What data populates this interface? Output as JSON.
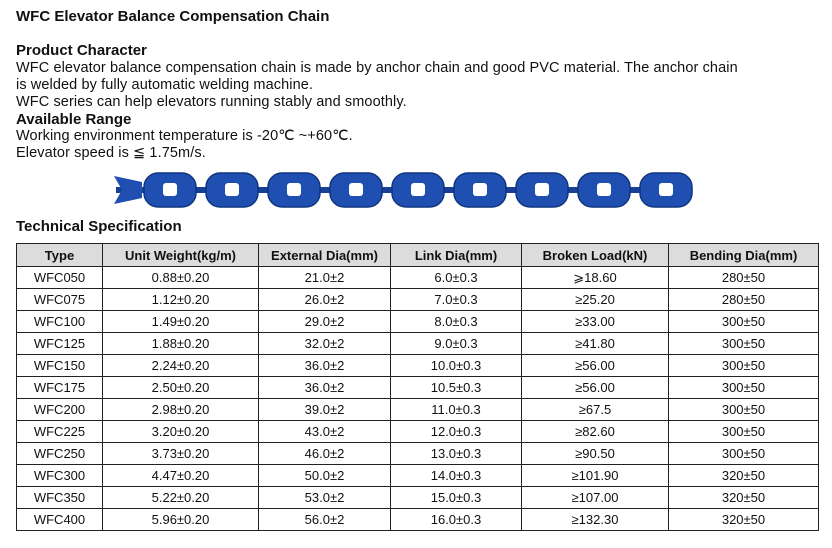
{
  "title": "WFC Elevator Balance Compensation Chain",
  "product_character": {
    "heading": "Product Character",
    "lines": [
      "WFC elevator balance compensation chain is made by anchor chain and good PVC material. The anchor chain",
      "is welded by fully automatic welding machine.",
      "WFC series can help elevators running stably and smoothly."
    ]
  },
  "available_range": {
    "heading": "Available Range",
    "lines": [
      "Working environment temperature is -20℃ ~+60℃.",
      "Elevator speed is ≦ 1.75m/s."
    ]
  },
  "chain_image": {
    "color": "#1f4fb0",
    "links": 9
  },
  "spec": {
    "heading": "Technical Specification",
    "columns": [
      "Type",
      "Unit Weight(kg/m)",
      "External Dia(mm)",
      "Link Dia(mm)",
      "Broken Load(kN)",
      "Bending Dia(mm)"
    ],
    "rows": [
      [
        "WFC050",
        "0.88±0.20",
        "21.0±2",
        "6.0±0.3",
        "⩾18.60",
        "280±50"
      ],
      [
        "WFC075",
        "1.12±0.20",
        "26.0±2",
        "7.0±0.3",
        "≥25.20",
        "280±50"
      ],
      [
        "WFC100",
        "1.49±0.20",
        "29.0±2",
        "8.0±0.3",
        "≥33.00",
        "300±50"
      ],
      [
        "WFC125",
        "1.88±0.20",
        "32.0±2",
        "9.0±0.3",
        "≥41.80",
        "300±50"
      ],
      [
        "WFC150",
        "2.24±0.20",
        "36.0±2",
        "10.0±0.3",
        "≥56.00",
        "300±50"
      ],
      [
        "WFC175",
        "2.50±0.20",
        "36.0±2",
        "10.5±0.3",
        "≥56.00",
        "300±50"
      ],
      [
        "WFC200",
        "2.98±0.20",
        "39.0±2",
        "11.0±0.3",
        "≥67.5",
        "300±50"
      ],
      [
        "WFC225",
        "3.20±0.20",
        "43.0±2",
        "12.0±0.3",
        "≥82.60",
        "300±50"
      ],
      [
        "WFC250",
        "3.73±0.20",
        "46.0±2",
        "13.0±0.3",
        "≥90.50",
        "300±50"
      ],
      [
        "WFC300",
        "4.47±0.20",
        "50.0±2",
        "14.0±0.3",
        "≥101.90",
        "320±50"
      ],
      [
        "WFC350",
        "5.22±0.20",
        "53.0±2",
        "15.0±0.3",
        "≥107.00",
        "320±50"
      ],
      [
        "WFC400",
        "5.96±0.20",
        "56.0±2",
        "16.0±0.3",
        "≥132.30",
        "320±50"
      ]
    ]
  }
}
